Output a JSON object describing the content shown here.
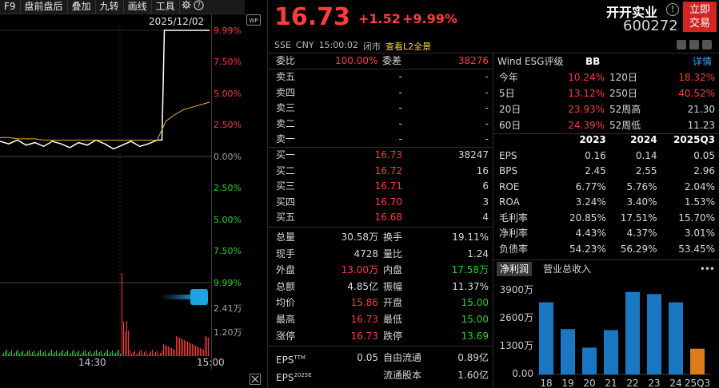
{
  "toolbar": {
    "items": [
      "F9",
      "盘前盘后",
      "叠加",
      "九转",
      "画线",
      "工具"
    ],
    "icons": [
      "gear-icon",
      "question-icon",
      "wide-screen-icon"
    ]
  },
  "chart": {
    "date": "2025/12/02",
    "pct_labels_top": [
      "9.99%",
      "7.50%",
      "5.00%",
      "2.50%",
      "0.00%"
    ],
    "pct_labels_bottom": [
      "2.50%",
      "5.00%",
      "7.50%",
      "9.99%"
    ],
    "vol_labels": [
      "2.41万",
      "1.20万"
    ],
    "time_labels": [
      "14:30",
      "15:00"
    ],
    "chart_data": {
      "type": "line",
      "note_series": [
        "price",
        "avg"
      ],
      "price_pct": [
        1.2,
        1.0,
        1.3,
        0.9,
        1.1,
        0.8,
        1.2,
        1.0,
        0.7,
        1.1,
        0.9,
        1.3,
        1.0,
        0.6,
        0.9,
        1.2,
        0.8,
        1.0,
        1.3,
        9.99,
        9.99,
        9.99,
        9.99,
        9.99,
        9.99
      ],
      "avg_pct": [
        1.5,
        1.5,
        1.4,
        1.4,
        1.4,
        1.3,
        1.3,
        1.3,
        1.3,
        1.3,
        1.3,
        1.3,
        1.3,
        1.3,
        1.3,
        1.3,
        1.3,
        1.3,
        1.3,
        2.8,
        3.3,
        3.7,
        3.9,
        4.1,
        4.3
      ]
    }
  },
  "quote": {
    "price": "16.73",
    "change": "+1.52",
    "change_pct": "+9.99%",
    "name": "开开实业",
    "code": "600272",
    "trade_button": "立即交易",
    "trade_line1": "立即",
    "trade_line2": "交易",
    "market": "SSE",
    "currency": "CNY",
    "time": "15:00:02",
    "status": "闭市",
    "l2": "查看L2全景",
    "info_icon": "info-icon"
  },
  "orderbook": {
    "webi_label": "委比",
    "webi_value": "100.00%",
    "weicha_label": "委差",
    "weicha_value": "38276",
    "asks": [
      {
        "label": "卖五",
        "price": "-",
        "vol": "-"
      },
      {
        "label": "卖四",
        "price": "-",
        "vol": "-"
      },
      {
        "label": "卖三",
        "price": "-",
        "vol": "-"
      },
      {
        "label": "卖二",
        "price": "-",
        "vol": "-"
      },
      {
        "label": "卖一",
        "price": "-",
        "vol": "-"
      }
    ],
    "bids": [
      {
        "label": "买一",
        "price": "16.73",
        "vol": "38247"
      },
      {
        "label": "买二",
        "price": "16.72",
        "vol": "16"
      },
      {
        "label": "买三",
        "price": "16.71",
        "vol": "6"
      },
      {
        "label": "买四",
        "price": "16.70",
        "vol": "3"
      },
      {
        "label": "买五",
        "price": "16.68",
        "vol": "4"
      }
    ]
  },
  "stats": [
    {
      "l1": "总量",
      "v1": "30.58万",
      "l2": "换手",
      "v2": "19.11%"
    },
    {
      "l1": "现手",
      "v1": "4728",
      "l2": "量比",
      "v2": "1.24"
    },
    {
      "l1": "外盘",
      "v1": "13.00万",
      "l2": "内盘",
      "v2": "17.58万"
    },
    {
      "l1": "总额",
      "v1": "4.85亿",
      "l2": "振幅",
      "v2": "11.37%"
    },
    {
      "l1": "均价",
      "v1": "15.86",
      "l2": "开盘",
      "v2": "15.00"
    },
    {
      "l1": "最高",
      "v1": "16.73",
      "l2": "最低",
      "v2": "15.00"
    },
    {
      "l1": "涨停",
      "v1": "16.73",
      "l2": "跌停",
      "v2": "13.69"
    }
  ],
  "eps": [
    {
      "l1": "EPS",
      "sup1": "TTM",
      "v1": "0.05",
      "l2": "自由流通",
      "v2": "0.89亿"
    },
    {
      "l1": "EPS",
      "sup1": "2025E",
      "v1": "",
      "l2": "流通股本",
      "v2": "1.60亿"
    }
  ],
  "wind": {
    "title": "Wind ESG评级",
    "rating": "BB",
    "detail": "详情"
  },
  "returns": [
    {
      "l1": "今年",
      "v1": "10.24%",
      "l2": "120日",
      "v2": "18.32%"
    },
    {
      "l1": "5日",
      "v1": "13.12%",
      "l2": "250日",
      "v2": "40.52%"
    },
    {
      "l1": "20日",
      "v1": "23.93%",
      "l2": "52周高",
      "v2": "21.30"
    },
    {
      "l1": "60日",
      "v1": "24.39%",
      "l2": "52周低",
      "v2": "11.23"
    }
  ],
  "fin": {
    "years": [
      "2023",
      "2024",
      "2025Q3"
    ],
    "rows": [
      {
        "label": "EPS",
        "vals": [
          "0.16",
          "0.14",
          "0.05"
        ]
      },
      {
        "label": "BPS",
        "vals": [
          "2.45",
          "2.55",
          "2.96"
        ]
      },
      {
        "label": "ROE",
        "vals": [
          "6.77%",
          "5.76%",
          "2.04%"
        ]
      },
      {
        "label": "ROA",
        "vals": [
          "3.24%",
          "3.40%",
          "1.53%"
        ]
      },
      {
        "label": "毛利率",
        "vals": [
          "20.85%",
          "17.51%",
          "15.70%"
        ]
      },
      {
        "label": "净利率",
        "vals": [
          "4.43%",
          "4.37%",
          "3.01%"
        ]
      },
      {
        "label": "负债率",
        "vals": [
          "54.23%",
          "56.29%",
          "53.45%"
        ]
      }
    ]
  },
  "profit": {
    "tabs": [
      "净利润",
      "营业总收入"
    ],
    "more": "•••",
    "y_labels": [
      "3900万",
      "2600万",
      "1300万",
      "0.00"
    ],
    "chart_data": {
      "type": "bar",
      "categories": [
        "18",
        "19",
        "20",
        "21",
        "22",
        "23",
        "24",
        "25Q3"
      ],
      "values": [
        3500,
        2200,
        1300,
        2150,
        4000,
        3900,
        3500,
        1250
      ],
      "ylim": [
        0,
        4300
      ],
      "colors": [
        "#1a78c2",
        "#1a78c2",
        "#1a78c2",
        "#1a78c2",
        "#1a78c2",
        "#1a78c2",
        "#1a78c2",
        "#e07b1a"
      ]
    }
  }
}
